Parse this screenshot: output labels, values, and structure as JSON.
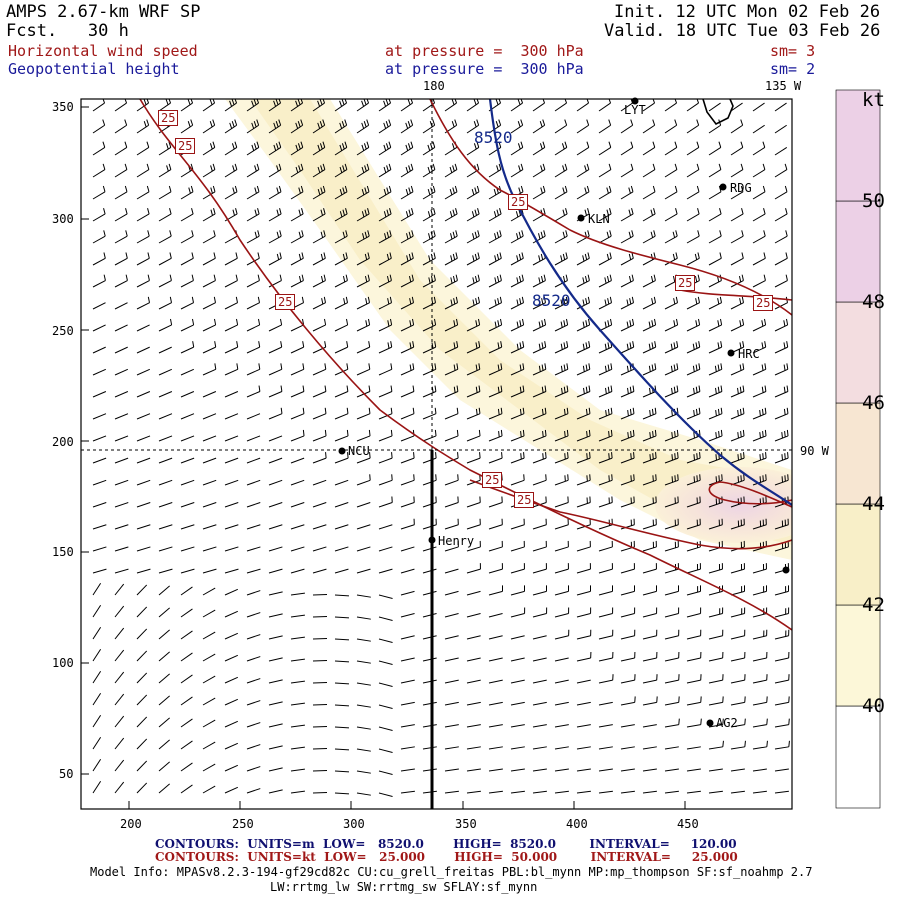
{
  "header": {
    "title": "AMPS 2.67-km WRF SP",
    "forecast": "Fcst.   30 h",
    "init": "Init. 12 UTC Mon 02 Feb 26",
    "valid": "Valid. 18 UTC Tue 03 Feb 26"
  },
  "fields": [
    {
      "name": "Horizontal wind speed",
      "level": "at pressure =  300 hPa",
      "smooth": "sm= 3"
    },
    {
      "name": "Geopotential height",
      "level": "at pressure =  300 hPa",
      "smooth": "sm= 2"
    }
  ],
  "map": {
    "lon_180": "180",
    "lon_135w": "135 W",
    "lon_90w": "90 W",
    "x_ticks": [
      "200",
      "250",
      "300",
      "350",
      "400",
      "450"
    ],
    "y_ticks": [
      "350",
      "300",
      "250",
      "200",
      "150",
      "100",
      "50"
    ],
    "stations": [
      {
        "name": "LYT",
        "label": "LYT"
      },
      {
        "name": "RDG",
        "label": "RDG"
      },
      {
        "name": "KLN",
        "label": "KLN"
      },
      {
        "name": "HRC",
        "label": "HRC"
      },
      {
        "name": "NCU",
        "label": "NCU"
      },
      {
        "name": "Henry",
        "label": "Henry"
      },
      {
        "name": "AG2",
        "label": "AG2"
      },
      {
        "name": "edge",
        "label": ""
      }
    ],
    "contour_labels": {
      "height": "8520",
      "speed": "25"
    }
  },
  "colorbar": {
    "unit": "kt",
    "ticks": [
      "50",
      "48",
      "46",
      "44",
      "42",
      "40"
    ],
    "colors": [
      "#ffffff",
      "#fcf7d8",
      "#f8efc8",
      "#f7e6d2",
      "#f3dde0",
      "#ecd0e6"
    ]
  },
  "footer": {
    "contours1": "CONTOURS:  UNITS=m  LOW=   8520.0       HIGH=  8520.0        INTERVAL=     120.00",
    "contours2": "CONTOURS:  UNITS=kt  LOW=   25.000       HIGH=  50.000        INTERVAL=     25.000",
    "model_info": "Model Info: MPASv8.2.3-194-gf29cd82c CU:cu_grell_freitas PBL:bl_mynn MP:mp_thompson SF:sf_noahmp 2.7",
    "model_info2": "LW:rrtmg_lw SW:rrtmg_sw SFLAY:sf_mynn"
  }
}
